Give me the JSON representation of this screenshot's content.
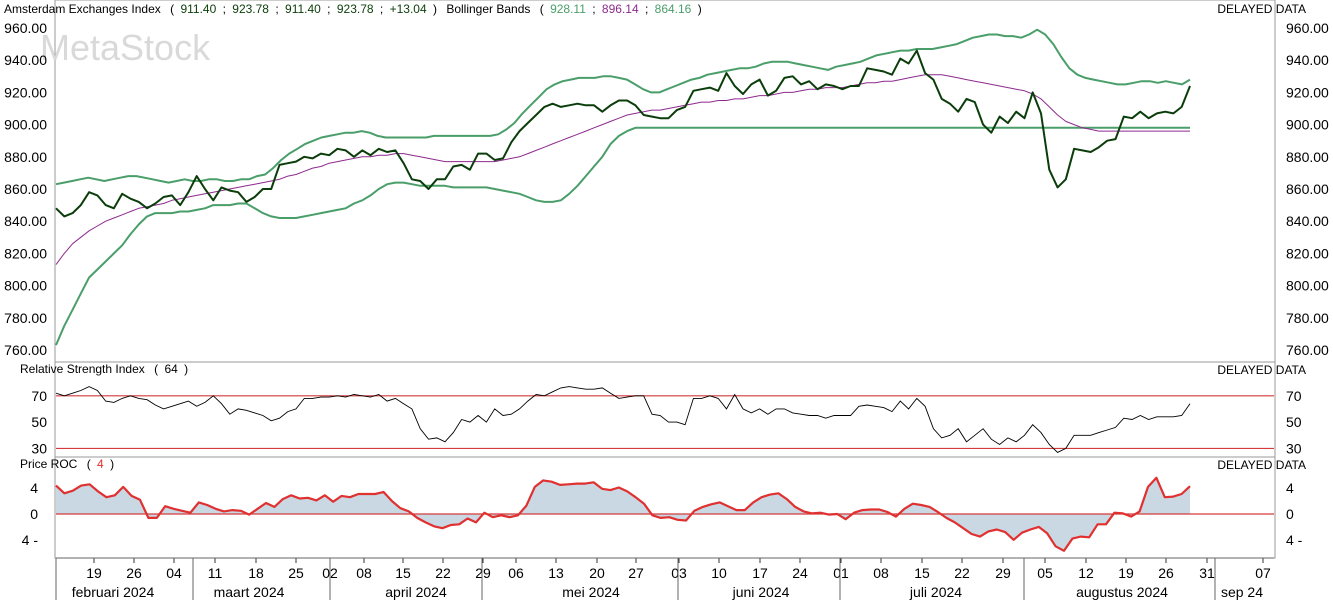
{
  "watermark": "MetaStock",
  "delayed_label": "DELAYED DATA",
  "colors": {
    "price": "#0b3d0b",
    "bands": "#4a9e6a",
    "middle": "#8e2a8e",
    "rsi_line": "#000000",
    "ref_line": "#d43a3a",
    "roc_line": "#e03030",
    "roc_fill": "#c9d8e3",
    "grid_sep": "#9a9a9a"
  },
  "header": {
    "main": {
      "name": "Amsterdam Exchanges Index",
      "open": "911.40",
      "high": "923.78",
      "low": "911.40",
      "close": "923.78",
      "change": "+13.04",
      "bb_name": "Bollinger Bands",
      "bb_upper": "928.11",
      "bb_middle": "896.14",
      "bb_lower": "864.16",
      "sep": ";",
      "open_paren": "(",
      "close_paren": ")"
    },
    "rsi": {
      "name": "Relative Strength Index",
      "value": "64",
      "open_paren": "(",
      "close_paren": ")"
    },
    "roc": {
      "name": "Price ROC",
      "value": "4",
      "open_paren": "(",
      "close_paren": ")"
    }
  },
  "x_axis": {
    "day_ticks": [
      "19",
      "26",
      "04",
      "11",
      "18",
      "25",
      "02",
      "08",
      "15",
      "22",
      "29",
      "06",
      "13",
      "20",
      "27",
      "03",
      "10",
      "17",
      "24",
      "01",
      "08",
      "15",
      "22",
      "29",
      "05",
      "12",
      "19",
      "26",
      "31",
      "07"
    ],
    "months": [
      "februari 2024",
      "maart 2024",
      "april 2024",
      "mei 2024",
      "juni 2024",
      "juli 2024",
      "augustus 2024",
      "sep 24"
    ]
  },
  "chart_data": [
    {
      "type": "line",
      "title": "Amsterdam Exchanges Index",
      "ylim": [
        755,
        965
      ],
      "yticks": [
        "960.00",
        "940.00",
        "920.00",
        "900.00",
        "880.00",
        "860.00",
        "840.00",
        "820.00",
        "800.00",
        "780.00",
        "760.00"
      ],
      "series": [
        {
          "name": "Amsterdam Exchanges Index",
          "values": [
            848,
            843,
            845,
            850,
            858,
            856,
            850,
            848,
            857,
            854,
            852,
            848,
            851,
            855,
            856,
            850,
            858,
            868,
            860,
            853,
            861,
            859,
            858,
            852,
            855,
            860,
            860,
            875,
            876,
            877,
            880,
            879,
            882,
            881,
            885,
            884,
            880,
            884,
            881,
            885,
            883,
            884,
            876,
            866,
            865,
            860,
            866,
            866,
            874,
            875,
            872,
            882,
            882,
            878,
            879,
            889,
            896,
            901,
            906,
            911,
            913,
            911,
            912,
            913,
            912,
            912,
            908,
            912,
            915,
            915,
            912,
            906,
            905,
            904,
            904,
            909,
            911,
            921,
            922,
            923,
            921,
            932,
            924,
            919,
            925,
            928,
            918,
            921,
            929,
            930,
            925,
            927,
            922,
            925,
            924,
            922,
            924,
            924,
            935,
            934,
            933,
            931,
            941,
            938,
            946,
            932,
            928,
            916,
            913,
            908,
            916,
            914,
            900,
            895,
            905,
            901,
            908,
            904,
            920,
            907,
            872,
            861,
            866,
            885,
            884,
            883,
            886,
            890,
            891,
            905,
            904,
            908,
            904,
            907,
            908,
            907,
            911,
            924
          ]
        },
        {
          "name": "Bollinger Bands",
          "values": [
            863,
            864,
            865,
            866,
            867,
            866,
            865,
            866,
            867,
            868,
            868,
            867,
            866,
            865,
            864,
            865,
            866,
            865,
            865,
            866,
            866,
            865,
            865,
            866,
            866,
            868,
            869,
            873,
            878,
            882,
            885,
            888,
            890,
            892,
            893,
            894,
            895,
            895,
            896,
            895,
            893,
            892,
            892,
            892,
            892,
            892,
            892,
            893,
            893,
            893,
            893,
            893,
            893,
            893,
            893,
            894,
            897,
            901,
            907,
            912,
            917,
            922,
            925,
            927,
            928,
            929,
            929,
            929,
            930,
            930,
            929,
            928,
            925,
            922,
            920,
            920,
            922,
            924,
            926,
            928,
            929,
            931,
            932,
            933,
            934,
            935,
            935,
            936,
            938,
            939,
            939,
            939,
            938,
            937,
            936,
            935,
            934,
            936,
            937,
            938,
            939,
            941,
            943,
            944,
            945,
            946,
            946,
            947,
            947,
            947,
            948,
            949,
            950,
            952,
            954,
            955,
            956,
            956,
            955,
            955,
            954,
            956,
            959,
            956,
            950,
            942,
            935,
            931,
            929,
            928,
            927,
            926,
            925,
            925,
            926,
            927,
            927,
            926,
            927,
            926,
            925,
            928
          ]
        },
        {
          "name": "Bollinger Bands",
          "values": [
            813,
            820,
            826,
            830,
            834,
            837,
            840,
            842,
            844,
            846,
            848,
            849,
            850,
            851,
            853,
            854,
            855,
            856,
            857,
            858,
            859,
            860,
            861,
            862,
            863,
            864,
            865,
            866,
            868,
            869,
            871,
            873,
            874,
            876,
            877,
            878,
            879,
            880,
            880,
            881,
            881,
            882,
            882,
            881,
            880,
            879,
            878,
            877,
            877,
            877,
            877,
            877,
            877,
            877,
            878,
            879,
            880,
            882,
            884,
            886,
            888,
            890,
            892,
            894,
            896,
            898,
            900,
            902,
            904,
            906,
            907,
            908,
            909,
            909,
            910,
            911,
            912,
            913,
            914,
            914,
            915,
            915,
            916,
            916,
            917,
            918,
            918,
            919,
            920,
            920,
            921,
            922,
            922,
            923,
            923,
            923,
            924,
            925,
            926,
            926,
            927,
            927,
            928,
            929,
            930,
            931,
            931,
            931,
            930,
            929,
            928,
            927,
            926,
            925,
            924,
            923,
            922,
            921,
            919,
            916,
            911,
            906,
            902,
            900,
            898,
            897,
            896,
            896,
            896,
            896,
            896,
            896,
            896,
            896,
            896,
            896,
            896,
            896
          ]
        },
        {
          "name": "Bollinger Bands",
          "values": [
            763,
            775,
            785,
            795,
            805,
            810,
            815,
            820,
            825,
            832,
            838,
            843,
            845,
            845,
            845,
            846,
            846,
            847,
            848,
            850,
            850,
            850,
            851,
            851,
            848,
            845,
            843,
            842,
            842,
            842,
            843,
            844,
            845,
            846,
            847,
            848,
            851,
            853,
            856,
            860,
            863,
            864,
            864,
            863,
            862,
            862,
            862,
            862,
            861,
            861,
            861,
            861,
            861,
            860,
            859,
            858,
            857,
            855,
            853,
            852,
            852,
            853,
            857,
            862,
            868,
            874,
            880,
            888,
            893,
            896,
            898,
            898,
            898,
            898,
            898,
            898,
            898,
            898,
            898,
            898,
            898,
            898,
            898,
            898,
            898,
            898,
            898,
            898,
            898,
            898,
            898,
            898,
            898,
            898,
            898,
            898,
            898,
            898,
            898,
            898,
            898,
            898,
            898,
            898,
            898,
            898,
            898,
            898,
            898,
            898,
            898,
            898,
            898,
            898,
            898,
            898,
            898,
            898,
            898,
            898,
            898,
            898,
            898,
            898,
            898,
            898,
            898,
            898,
            898,
            898,
            898,
            898,
            898,
            898,
            898,
            898,
            898,
            898
          ]
        }
      ]
    },
    {
      "type": "line",
      "title": "Relative Strength Index",
      "ylim": [
        25,
        82
      ],
      "yticks": [
        "70",
        "50",
        "30"
      ],
      "reference_lines": [
        70,
        30
      ],
      "series": [
        {
          "name": "Relative Strength Index",
          "values": [
            72,
            70,
            72,
            74,
            77,
            74,
            66,
            65,
            68,
            70,
            68,
            67,
            63,
            60,
            62,
            64,
            66,
            62,
            65,
            70,
            64,
            56,
            60,
            59,
            57,
            55,
            51,
            53,
            58,
            60,
            68,
            68,
            69,
            69,
            70,
            69,
            71,
            70,
            69,
            71,
            66,
            68,
            64,
            60,
            45,
            37,
            38,
            35,
            42,
            52,
            50,
            55,
            50,
            60,
            55,
            56,
            60,
            66,
            71,
            70,
            73,
            76,
            77,
            76,
            75,
            75,
            76,
            72,
            68,
            69,
            70,
            70,
            56,
            55,
            50,
            50,
            48,
            68,
            68,
            70,
            68,
            60,
            71,
            60,
            57,
            60,
            56,
            60,
            60,
            57,
            56,
            55,
            55,
            53,
            55,
            55,
            55,
            62,
            63,
            62,
            61,
            58,
            66,
            60,
            68,
            62,
            45,
            38,
            40,
            45,
            35,
            40,
            45,
            37,
            33,
            38,
            35,
            40,
            48,
            42,
            33,
            27,
            30,
            40,
            40,
            40,
            42,
            44,
            46,
            53,
            52,
            55,
            52,
            54,
            54,
            54,
            55,
            64
          ]
        }
      ]
    },
    {
      "type": "area",
      "title": "Price ROC",
      "ylim": [
        -6.5,
        6.5
      ],
      "yticks": [
        "4",
        "0",
        "4 -"
      ],
      "series": [
        {
          "name": "Price ROC",
          "values": [
            4.4,
            3.2,
            3.6,
            4.4,
            4.6,
            3.5,
            2.6,
            2.9,
            4.2,
            2.8,
            2.2,
            -0.6,
            -0.6,
            1.2,
            0.8,
            0.5,
            0.2,
            1.8,
            1.4,
            0.8,
            0.4,
            0.6,
            0.5,
            -0.1,
            0.8,
            1.7,
            1.1,
            2.3,
            2.9,
            2.4,
            2.5,
            2.1,
            2.9,
            1.9,
            2.8,
            2.6,
            3.1,
            3.1,
            3.1,
            3.4,
            2.0,
            0.9,
            0.4,
            -0.6,
            -1.3,
            -1.9,
            -2.2,
            -1.7,
            -1.6,
            -0.7,
            -1.3,
            0.2,
            -0.5,
            -0.2,
            -0.5,
            -0.2,
            1.3,
            4.2,
            5.2,
            5.0,
            4.5,
            4.6,
            4.7,
            4.7,
            4.9,
            3.9,
            3.7,
            4.1,
            3.5,
            2.6,
            1.6,
            -0.2,
            -0.6,
            -0.5,
            -0.9,
            -1.0,
            0.5,
            1.1,
            1.5,
            1.8,
            1.2,
            0.6,
            0.6,
            1.8,
            2.6,
            3.0,
            3.2,
            2.3,
            1.1,
            0.4,
            0.1,
            0.2,
            -0.1,
            0.0,
            -0.8,
            0.2,
            0.6,
            0.7,
            0.7,
            0.3,
            -0.4,
            0.8,
            1.6,
            1.4,
            1.1,
            0.3,
            -0.6,
            -1.3,
            -2.2,
            -3.1,
            -3.5,
            -2.7,
            -2.4,
            -2.8,
            -4.0,
            -2.9,
            -2.4,
            -2.0,
            -3.0,
            -5.0,
            -5.7,
            -3.8,
            -3.5,
            -3.6,
            -1.6,
            -1.6,
            0.2,
            0.1,
            -0.4,
            0.4,
            4.2,
            5.6,
            2.6,
            2.7,
            3.1,
            4.3
          ]
        }
      ]
    }
  ]
}
